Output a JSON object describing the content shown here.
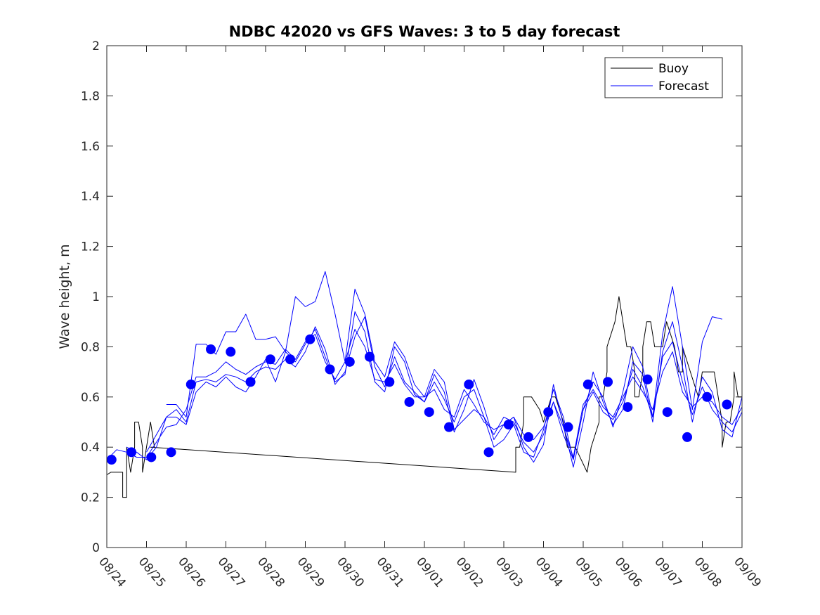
{
  "chart_data": {
    "type": "line",
    "title": "NDBC 42020 vs GFS Waves: 3 to 5 day forecast",
    "xlabel": "",
    "ylabel": "Wave height, m",
    "xlim": [
      0,
      16
    ],
    "ylim": [
      0,
      2
    ],
    "x_unit": "days since 08/24",
    "yticks": [
      0,
      0.2,
      0.4,
      0.6,
      0.8,
      1,
      1.2,
      1.4,
      1.6,
      1.8,
      2
    ],
    "ytick_labels": [
      "0",
      "0.2",
      "0.4",
      "0.6",
      "0.8",
      "1",
      "1.2",
      "1.4",
      "1.6",
      "1.8",
      "2"
    ],
    "xticks": [
      0,
      1,
      2,
      3,
      4,
      5,
      6,
      7,
      8,
      9,
      10,
      11,
      12,
      13,
      14,
      15,
      16
    ],
    "xtick_labels": [
      "08/24",
      "08/25",
      "08/26",
      "08/27",
      "08/28",
      "08/29",
      "08/30",
      "08/31",
      "09/01",
      "09/02",
      "09/03",
      "09/04",
      "09/05",
      "09/06",
      "09/07",
      "09/08",
      "09/09"
    ],
    "legend": {
      "position": "top-right",
      "entries": [
        {
          "label": "Buoy",
          "color": "#000000"
        },
        {
          "label": "Forecast",
          "color": "#0000ff"
        }
      ]
    },
    "colors": {
      "buoy": "#000000",
      "forecast": "#0000ff",
      "markers": "#0000ff"
    },
    "series": [
      {
        "name": "Buoy",
        "color": "#000000",
        "x": [
          0,
          0.1,
          0.2,
          0.4,
          0.4,
          0.5,
          0.5,
          0.5,
          0.6,
          0.7,
          0.7,
          0.8,
          0.9,
          0.9,
          1.0,
          1.1,
          1.2,
          1.1,
          10.3,
          10.3,
          10.4,
          10.5,
          10.5,
          10.7,
          10.9,
          11.0,
          11.0,
          11.2,
          11.3,
          11.3,
          11.5,
          11.6,
          11.7,
          11.7,
          11.8,
          12.1,
          12.2,
          12.2,
          12.4,
          12.4,
          12.5,
          12.6,
          12.6,
          12.8,
          12.9,
          12.9,
          13.0,
          13.1,
          13.1,
          13.2,
          13.3,
          13.3,
          13.4,
          13.5,
          13.5,
          13.6,
          13.7,
          13.8,
          14.0,
          14.1,
          14.3,
          14.3,
          14.4,
          14.5,
          14.5,
          14.7,
          14.9,
          15.0,
          15.1,
          15.3,
          15.4,
          15.5,
          15.5,
          15.6,
          15.7,
          15.8,
          15.8,
          15.9,
          16.0
        ],
        "y": [
          0.29,
          0.3,
          0.3,
          0.3,
          0.2,
          0.2,
          0.3,
          0.4,
          0.3,
          0.4,
          0.5,
          0.5,
          0.4,
          0.3,
          0.4,
          0.5,
          0.4,
          0.4,
          0.3,
          0.4,
          0.4,
          0.5,
          0.6,
          0.6,
          0.55,
          0.5,
          0.5,
          0.6,
          0.6,
          0.6,
          0.5,
          0.4,
          0.4,
          0.4,
          0.4,
          0.3,
          0.4,
          0.4,
          0.5,
          0.6,
          0.6,
          0.7,
          0.8,
          0.9,
          1.0,
          1.0,
          0.9,
          0.8,
          0.8,
          0.8,
          0.7,
          0.6,
          0.6,
          0.7,
          0.8,
          0.9,
          0.9,
          0.8,
          0.8,
          0.9,
          0.8,
          0.8,
          0.7,
          0.7,
          0.8,
          0.7,
          0.6,
          0.7,
          0.7,
          0.7,
          0.6,
          0.5,
          0.4,
          0.5,
          0.5,
          0.6,
          0.7,
          0.6,
          0.6
        ]
      },
      {
        "name": "Forecast",
        "color": "#0000ff",
        "x": [
          0,
          0.25,
          0.5,
          0.75,
          1.0,
          1.25,
          1.5,
          1.75,
          2.0,
          2.25,
          2.5,
          2.75,
          3.0,
          3.25,
          3.5,
          3.75,
          4.0,
          4.25,
          4.5,
          4.75,
          5.0,
          5.25,
          5.5,
          5.75,
          6.0,
          6.25,
          6.5,
          6.75,
          7.0,
          7.25,
          7.5,
          7.75,
          8.0,
          8.25,
          8.5,
          8.75,
          9.0,
          9.25,
          9.5,
          9.75,
          10.0,
          10.25,
          10.5,
          10.75,
          11.0,
          11.25,
          11.5,
          11.75,
          12.0,
          12.25,
          12.5,
          12.75,
          13.0,
          13.25,
          13.5,
          13.75,
          14.0,
          14.25,
          14.5,
          14.75,
          15.0,
          15.25,
          15.5,
          15.75,
          16.0
        ],
        "y": [
          0.35,
          0.39,
          0.38,
          0.36,
          0.36,
          0.42,
          0.48,
          0.49,
          0.55,
          0.68,
          0.68,
          0.7,
          0.74,
          0.71,
          0.69,
          0.72,
          0.74,
          0.73,
          0.79,
          0.75,
          0.82,
          0.85,
          0.74,
          0.67,
          0.74,
          0.87,
          0.8,
          0.67,
          0.66,
          0.73,
          0.65,
          0.6,
          0.6,
          0.63,
          0.55,
          0.52,
          0.63,
          0.57,
          0.5,
          0.47,
          0.49,
          0.52,
          0.45,
          0.43,
          0.48,
          0.58,
          0.48,
          0.36,
          0.57,
          0.63,
          0.56,
          0.52,
          0.6,
          0.68,
          0.62,
          0.55,
          0.7,
          0.78,
          0.62,
          0.56,
          0.6,
          0.58,
          0.52,
          0.49,
          0.56
        ]
      },
      {
        "name": "Forecast",
        "color": "#0000ff",
        "x": [
          0.5,
          0.75,
          1.0,
          1.25,
          1.5,
          1.75,
          2.0,
          2.25,
          2.5,
          2.75,
          3.0,
          3.25,
          3.5,
          3.75,
          4.0,
          4.25,
          4.5,
          4.75,
          5.0,
          5.25,
          5.5,
          5.75,
          6.0,
          6.25,
          6.5,
          6.75,
          7.0,
          7.25,
          7.5,
          7.75,
          8.0,
          8.25,
          8.5,
          8.75,
          9.0,
          9.25,
          9.5,
          9.75,
          10.0,
          10.25,
          10.5,
          10.75,
          11.0,
          11.25,
          11.5,
          11.75,
          12.0,
          12.25,
          12.5,
          12.75,
          13.0,
          13.25,
          13.5,
          13.75,
          14.0,
          14.25,
          14.5,
          14.75,
          15.0,
          15.25,
          15.5,
          15.75,
          16.0
        ],
        "y": [
          0.4,
          0.38,
          0.35,
          0.4,
          0.52,
          0.55,
          0.5,
          0.66,
          0.67,
          0.66,
          0.69,
          0.68,
          0.66,
          0.7,
          0.72,
          0.71,
          0.75,
          0.72,
          0.78,
          0.88,
          0.79,
          0.65,
          0.7,
          0.84,
          0.92,
          0.72,
          0.64,
          0.76,
          0.66,
          0.62,
          0.58,
          0.66,
          0.59,
          0.5,
          0.6,
          0.63,
          0.52,
          0.45,
          0.52,
          0.5,
          0.42,
          0.38,
          0.45,
          0.58,
          0.45,
          0.35,
          0.55,
          0.62,
          0.54,
          0.51,
          0.58,
          0.71,
          0.64,
          0.52,
          0.76,
          0.82,
          0.66,
          0.53,
          0.64,
          0.55,
          0.5,
          0.46,
          0.54
        ]
      },
      {
        "name": "Forecast",
        "color": "#0000ff",
        "x": [
          1.0,
          1.25,
          1.5,
          1.75,
          2.0,
          2.25,
          2.5,
          2.75,
          3.0,
          3.25,
          3.5,
          3.75,
          4.0,
          4.25,
          4.5,
          4.75,
          5.0,
          5.25,
          5.5,
          5.75,
          6.0,
          6.25,
          6.5,
          6.75,
          7.0,
          7.25,
          7.5,
          7.75,
          8.0,
          8.25,
          8.5,
          8.75,
          9.0,
          9.25,
          9.5,
          9.75,
          10.0,
          10.25,
          10.5,
          10.75,
          11.0,
          11.25,
          11.5,
          11.75,
          12.0,
          12.25,
          12.5,
          12.75,
          13.0,
          13.25,
          13.5,
          13.75,
          14.0,
          14.25,
          14.5,
          14.75,
          15.0,
          15.25,
          15.5,
          15.75,
          16.0
        ],
        "y": [
          0.38,
          0.45,
          0.52,
          0.52,
          0.49,
          0.62,
          0.66,
          0.64,
          0.68,
          0.64,
          0.62,
          0.68,
          0.75,
          0.66,
          0.78,
          0.74,
          0.81,
          0.87,
          0.76,
          0.66,
          0.69,
          0.94,
          0.86,
          0.66,
          0.62,
          0.8,
          0.74,
          0.61,
          0.58,
          0.69,
          0.62,
          0.46,
          0.55,
          0.67,
          0.56,
          0.43,
          0.49,
          0.52,
          0.4,
          0.34,
          0.41,
          0.65,
          0.49,
          0.32,
          0.5,
          0.7,
          0.58,
          0.49,
          0.55,
          0.74,
          0.69,
          0.5,
          0.78,
          0.9,
          0.72,
          0.5,
          0.68,
          0.62,
          0.47,
          0.44,
          0.6
        ]
      },
      {
        "name": "Forecast",
        "color": "#0000ff",
        "x": [
          1.5,
          1.75,
          2.0,
          2.25,
          2.5,
          2.75,
          3.0,
          3.25,
          3.5,
          3.75,
          4.0,
          4.25,
          4.5,
          4.75,
          5.0,
          5.25,
          5.5,
          5.75,
          6.0,
          6.25,
          6.5,
          6.75,
          7.0,
          7.25,
          7.5,
          7.75,
          8.0,
          8.25,
          8.5,
          8.75,
          9.0,
          9.25,
          9.5,
          9.75,
          10.0,
          10.25,
          10.5,
          10.75,
          11.0,
          11.25,
          11.5,
          11.75,
          12.0,
          12.25,
          12.5,
          12.75,
          13.0,
          13.25,
          13.5,
          13.75,
          14.0,
          14.25,
          14.5,
          14.75,
          15.0,
          15.25,
          15.5
        ],
        "y": [
          0.57,
          0.57,
          0.52,
          0.81,
          0.81,
          0.77,
          0.86,
          0.86,
          0.93,
          0.83,
          0.83,
          0.84,
          0.78,
          1.0,
          0.96,
          0.98,
          1.1,
          0.93,
          0.74,
          1.03,
          0.93,
          0.74,
          0.68,
          0.82,
          0.76,
          0.65,
          0.6,
          0.71,
          0.66,
          0.47,
          0.51,
          0.55,
          0.52,
          0.4,
          0.43,
          0.49,
          0.38,
          0.36,
          0.47,
          0.63,
          0.52,
          0.35,
          0.55,
          0.66,
          0.6,
          0.48,
          0.62,
          0.8,
          0.72,
          0.52,
          0.85,
          1.04,
          0.8,
          0.55,
          0.82,
          0.92,
          0.91
        ]
      },
      {
        "name": "Forecast points",
        "color": "#0000ff",
        "marker": "circle",
        "x": [
          0.12,
          0.62,
          1.12,
          1.62,
          2.12,
          2.62,
          3.12,
          3.62,
          4.12,
          4.62,
          5.12,
          5.62,
          6.12,
          6.62,
          7.12,
          7.62,
          8.12,
          8.62,
          9.12,
          9.62,
          10.12,
          10.62,
          11.12,
          11.62,
          12.12,
          12.62,
          13.12,
          13.62,
          14.12,
          14.62,
          15.12,
          15.62
        ],
        "y": [
          0.35,
          0.38,
          0.36,
          0.38,
          0.65,
          0.79,
          0.78,
          0.66,
          0.75,
          0.75,
          0.83,
          0.71,
          0.74,
          0.76,
          0.66,
          0.58,
          0.54,
          0.48,
          0.65,
          0.38,
          0.49,
          0.44,
          0.54,
          0.48,
          0.65,
          0.66,
          0.56,
          0.67,
          0.54,
          0.44,
          0.6,
          0.57
        ]
      }
    ]
  }
}
